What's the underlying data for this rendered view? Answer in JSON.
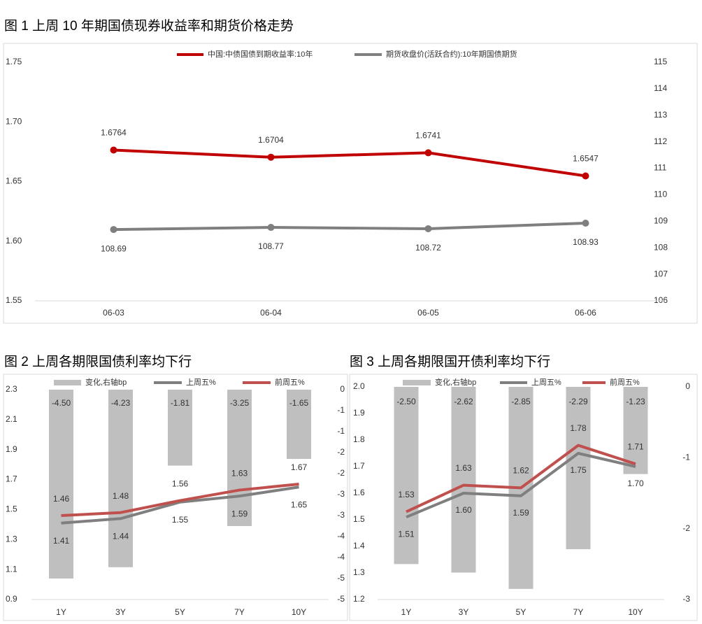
{
  "chart_data": [
    {
      "type": "line",
      "title": "图 1  上周 10 年期国债现券收益率和期货价格走势",
      "categories": [
        "06-03",
        "06-04",
        "06-05",
        "06-06"
      ],
      "series": [
        {
          "name": "中国:中债国债到期收益率:10年",
          "color": "#c00000",
          "values": [
            1.6764,
            1.6704,
            1.6741,
            1.6547
          ]
        },
        {
          "name": "期货收盘价(活跃合约):10年期国债期货",
          "color": "#7f7f7f",
          "axis": "y2",
          "values": [
            108.69,
            108.77,
            108.72,
            108.93
          ]
        }
      ],
      "markers": true,
      "ylim": [
        1.55,
        1.75
      ],
      "yticks": [
        1.55,
        {
          "value": 1.6,
          "label": "1.60"
        },
        1.65,
        {
          "value": 1.7,
          "label": "1.70"
        },
        1.75
      ],
      "y2lim": [
        106,
        115
      ],
      "y2ticks": [
        106,
        107,
        108,
        109,
        110,
        111,
        112,
        113,
        114,
        115
      ]
    },
    {
      "type": "combo",
      "title": "图 2  上周各期限国债利率均下行",
      "categories": [
        "1Y",
        "3Y",
        "5Y",
        "7Y",
        "10Y"
      ],
      "series": [
        {
          "name": "变化,右轴bp",
          "type": "bar",
          "color": "#bfbfbf",
          "axis": "y2",
          "values": [
            -4.5,
            -4.23,
            -1.81,
            -3.25,
            -1.65
          ],
          "value_labels": [
            "-4.50",
            "-4.23",
            "-1.81",
            "-3.25",
            "-1.65"
          ]
        },
        {
          "name": "上周五%",
          "type": "line",
          "color": "#7f7f7f",
          "values": [
            1.41,
            1.44,
            1.55,
            1.59,
            1.65
          ]
        },
        {
          "name": "前周五%",
          "type": "line",
          "color": "#c0504d",
          "values": [
            1.46,
            1.48,
            1.56,
            1.63,
            1.67
          ]
        }
      ],
      "ylim": [
        0.9,
        2.3
      ],
      "yticks": [
        0.9,
        1.1,
        1.3,
        1.5,
        1.7,
        1.9,
        2.1,
        2.3
      ],
      "y2lim": [
        -5,
        0
      ],
      "y2ticks": [
        0,
        {
          "value": -0.5,
          "label": "-1"
        },
        -1,
        {
          "value": -1.5,
          "label": "-2"
        },
        -2,
        {
          "value": -2.5,
          "label": "-3"
        },
        -3,
        {
          "value": -3.5,
          "label": "-4"
        },
        -4,
        {
          "value": -4.5,
          "label": "-5"
        },
        -5
      ]
    },
    {
      "type": "combo",
      "title": "图 3  上周各期限国开债利率均下行",
      "categories": [
        "1Y",
        "3Y",
        "5Y",
        "7Y",
        "10Y"
      ],
      "series": [
        {
          "name": "变化,右轴bp",
          "type": "bar",
          "color": "#bfbfbf",
          "axis": "y2",
          "values": [
            -2.5,
            -2.62,
            -2.85,
            -2.29,
            -1.23
          ],
          "value_labels": [
            "-2.50",
            "-2.62",
            "-2.85",
            "-2.29",
            "-1.23"
          ]
        },
        {
          "name": "上周五%",
          "type": "line",
          "color": "#7f7f7f",
          "values": [
            1.51,
            1.6,
            1.59,
            1.75,
            1.7
          ],
          "value_labels": [
            "1.51",
            "1.60",
            "1.59",
            "1.75",
            "1.70"
          ]
        },
        {
          "name": "前周五%",
          "type": "line",
          "color": "#c0504d",
          "values": [
            1.53,
            1.63,
            1.62,
            1.78,
            1.71
          ]
        }
      ],
      "ylim": [
        1.2,
        2.0
      ],
      "yticks": [
        1.2,
        1.3,
        1.4,
        1.5,
        1.6,
        1.7,
        1.8,
        1.9,
        {
          "value": 2.0,
          "label": "2.0"
        }
      ],
      "y2lim": [
        -3,
        0
      ],
      "y2ticks": [
        0,
        -1,
        -2,
        -3
      ]
    }
  ]
}
